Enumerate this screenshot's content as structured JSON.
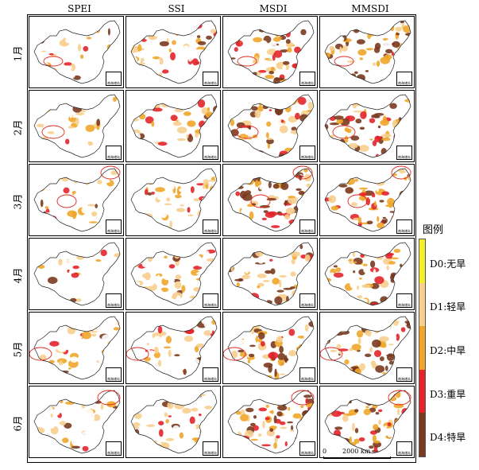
{
  "columns": [
    "SPEI",
    "SSI",
    "MSDI",
    "MMSDI"
  ],
  "rows": [
    "1月",
    "2月",
    "3月",
    "4月",
    "5月",
    "6月"
  ],
  "inset_label": "南海诸岛",
  "legend": {
    "title": "图例",
    "classes": [
      {
        "label": "D0:无旱",
        "color": "#f5ef2a"
      },
      {
        "label": "D1:轻旱",
        "color": "#f7cf8f"
      },
      {
        "label": "D2:中旱",
        "color": "#f0a62a"
      },
      {
        "label": "D3:重旱",
        "color": "#e3242b"
      },
      {
        "label": "D4:特旱",
        "color": "#7a3a1f"
      }
    ]
  },
  "scalebar": {
    "zero": "0",
    "distance": "2000 km"
  },
  "highlight_color": "#e0281e"
}
